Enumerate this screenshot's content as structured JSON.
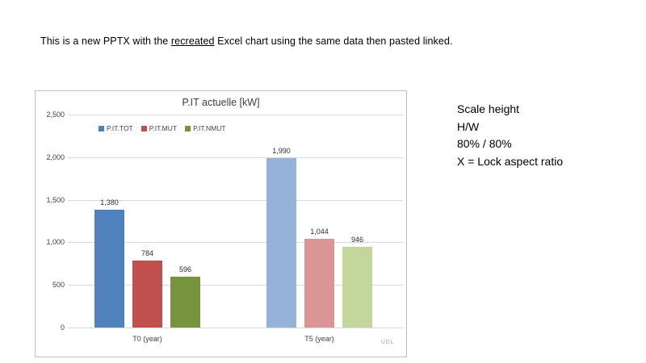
{
  "page": {
    "intro": {
      "prefix": "This is a new PPTX with the ",
      "underlined_word": "recreated",
      "suffix": " Excel chart using the same data then pasted linked."
    },
    "side_note": {
      "lines": [
        "Scale height",
        "H/W",
        "80% / 80%",
        "X = Lock aspect ratio"
      ]
    }
  },
  "chart_data": {
    "type": "bar",
    "title": "P.IT actuelle [kW]",
    "watermark": "UDL",
    "categories": [
      "T0 (year)",
      "T5 (year)"
    ],
    "series": [
      {
        "name": "P.IT.TOT",
        "values": [
          1380,
          1990
        ],
        "labels": [
          "1,380",
          "1,990"
        ],
        "colors": [
          "#4f81bd",
          "#95b3d7"
        ]
      },
      {
        "name": "P.IT.MUT",
        "values": [
          784,
          1044
        ],
        "labels": [
          "784",
          "1,044"
        ],
        "colors": [
          "#c0504d",
          "#d99694"
        ]
      },
      {
        "name": "P.IT.NMUT",
        "values": [
          596,
          946
        ],
        "labels": [
          "596",
          "946"
        ],
        "colors": [
          "#77933c",
          "#c3d69b"
        ]
      }
    ],
    "ylim": [
      0,
      2500
    ],
    "ytick_step": 500,
    "ytick_labels": [
      "0",
      "500",
      "1,000",
      "1,500",
      "2,000",
      "2,500"
    ],
    "legend_position": "inside-top-left",
    "grid": true,
    "gridline_color": "#d9d9d9",
    "border_color": "#bdbdbd",
    "text_color": "#3f3f3f"
  }
}
